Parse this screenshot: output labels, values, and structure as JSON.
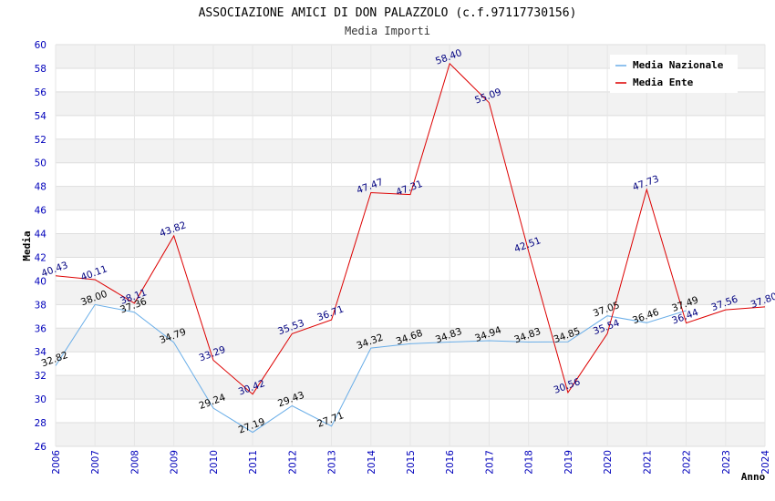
{
  "chart_data": {
    "type": "line",
    "title": "ASSOCIAZIONE AMICI DI DON PALAZZOLO (c.f.97117730156)",
    "subtitle": "Media Importi",
    "xlabel": "Anno",
    "ylabel": "Media",
    "ylim": [
      26,
      60
    ],
    "ytick_step": 2,
    "grid": true,
    "legend_position": "top-right",
    "categories": [
      "2006",
      "2007",
      "2008",
      "2009",
      "2010",
      "2011",
      "2012",
      "2013",
      "2014",
      "2015",
      "2016",
      "2017",
      "2018",
      "2019",
      "2020",
      "2021",
      "2022",
      "2023",
      "2024"
    ],
    "series": [
      {
        "name": "Media Nazionale",
        "color": "#6aaee8",
        "label_color": "#000000",
        "values": [
          32.82,
          38.0,
          37.36,
          34.79,
          29.24,
          27.19,
          29.43,
          27.71,
          34.32,
          34.68,
          34.83,
          34.94,
          34.83,
          34.85,
          37.05,
          36.46,
          37.49,
          null,
          null
        ]
      },
      {
        "name": "Media Ente",
        "color": "#dd0000",
        "label_color": "#000080",
        "values": [
          40.43,
          40.11,
          38.11,
          43.82,
          33.29,
          30.42,
          35.53,
          36.71,
          47.47,
          47.31,
          58.4,
          55.09,
          42.51,
          30.56,
          35.54,
          47.73,
          36.44,
          37.56,
          37.8
        ]
      }
    ]
  }
}
